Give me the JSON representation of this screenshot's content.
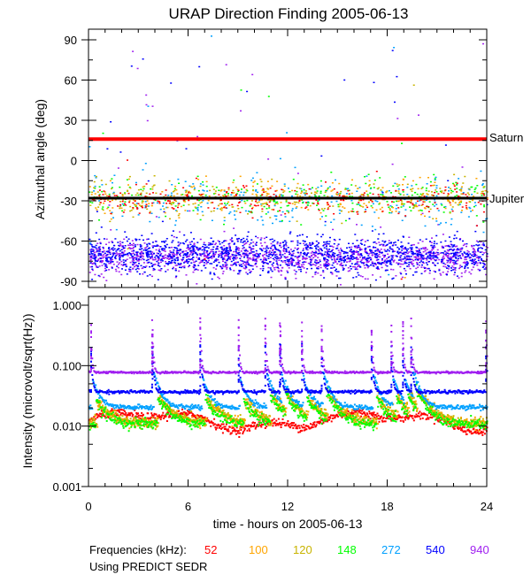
{
  "chart_data": [
    {
      "type": "scatter",
      "title": "URAP Direction Finding  2005-06-13",
      "xlabel": "",
      "ylabel": "Azimuthal angle (deg)",
      "xlim": [
        0,
        24
      ],
      "ylim": [
        -95,
        98
      ],
      "yticks": [
        90,
        60,
        30,
        0,
        -30,
        -60,
        -90
      ],
      "ytick_labels": [
        "90",
        "60",
        "30",
        "0",
        "-30",
        "-60",
        "-90"
      ],
      "reference_lines": [
        {
          "name": "Saturn",
          "value": 16,
          "color": "#ff0000"
        },
        {
          "name": "Jupiter",
          "value": -28,
          "color": "#000000"
        }
      ],
      "clusters": [
        {
          "freq": "940",
          "center": -72,
          "spread": 6,
          "color": "#a020f0"
        },
        {
          "freq": "540",
          "center": -70,
          "spread": 7,
          "color": "#0000ff"
        },
        {
          "freq": "272",
          "center": -30,
          "spread": 10,
          "color": "#00a0ff"
        },
        {
          "freq": "148",
          "center": -28,
          "spread": 7,
          "color": "#00ff00"
        },
        {
          "freq": "120",
          "center": -27,
          "spread": 7,
          "color": "#c8b400"
        },
        {
          "freq": "100",
          "center": -27,
          "spread": 7,
          "color": "#ffa500"
        },
        {
          "freq": "52",
          "center": -29,
          "spread": 5,
          "color": "#ff0000"
        }
      ]
    },
    {
      "type": "scatter",
      "xlabel": "time - hours on 2005-06-13",
      "ylabel": "Intensity (microvolt/sqrt(Hz))",
      "xlim": [
        0,
        24
      ],
      "ylim": [
        0.001,
        1.0
      ],
      "yscale": "log",
      "xticks": [
        0,
        6,
        12,
        18,
        24
      ],
      "xtick_labels": [
        "0",
        "6",
        "12",
        "18",
        "24"
      ],
      "yticks": [
        1.0,
        0.1,
        0.01,
        0.001
      ],
      "ytick_labels": [
        "1.000",
        "0.100",
        "0.010",
        "0.001"
      ],
      "burst_hours": [
        0.1,
        3.8,
        6.7,
        9.0,
        10.6,
        11.5,
        12.8,
        14.0,
        17.0,
        18.2,
        18.9,
        19.4,
        23.9
      ],
      "series": [
        {
          "name": "52",
          "baseline": 0.013,
          "color": "#ff0000"
        },
        {
          "name": "100",
          "baseline": 0.0115,
          "color": "#ffa500"
        },
        {
          "name": "120",
          "baseline": 0.0115,
          "color": "#c8b400"
        },
        {
          "name": "148",
          "baseline": 0.011,
          "color": "#00ff00"
        },
        {
          "name": "272",
          "baseline": 0.021,
          "color": "#00a0ff"
        },
        {
          "name": "540",
          "baseline": 0.038,
          "color": "#0000ff"
        },
        {
          "name": "940",
          "baseline": 0.08,
          "color": "#a020f0"
        }
      ]
    }
  ],
  "legend": {
    "label": "Frequencies (kHz):",
    "items": [
      {
        "text": "52",
        "color": "#ff0000"
      },
      {
        "text": "100",
        "color": "#ffa500"
      },
      {
        "text": "120",
        "color": "#c8b400"
      },
      {
        "text": "148",
        "color": "#00ff00"
      },
      {
        "text": "272",
        "color": "#00a0ff"
      },
      {
        "text": "540",
        "color": "#0000ff"
      },
      {
        "text": "940",
        "color": "#a020f0"
      }
    ],
    "note": "Using PREDICT SEDR"
  }
}
